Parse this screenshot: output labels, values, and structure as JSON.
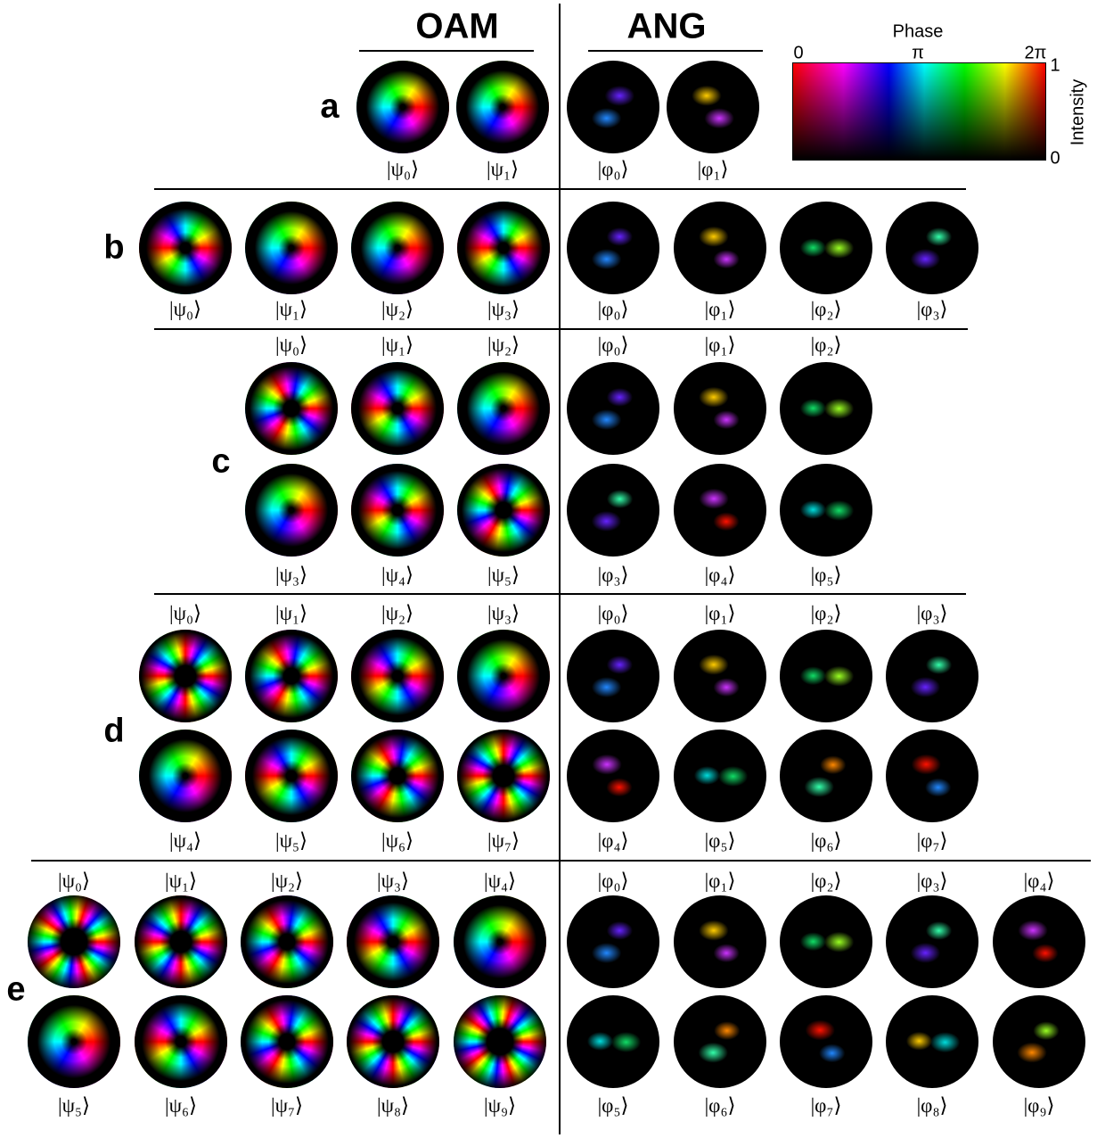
{
  "header": {
    "oam": "OAM",
    "ang": "ANG"
  },
  "colorbar": {
    "title": "Phase",
    "phase_ticks": [
      "0",
      "π",
      "2π"
    ],
    "intensity_ticks": [
      "1",
      "0"
    ],
    "intensity_label": "Intensity"
  },
  "panels": [
    {
      "label": "a",
      "oam": [
        [
          "|ψ₀⟩",
          "|ψ₁⟩"
        ]
      ],
      "ang": [
        [
          "|φ₀⟩",
          "|φ₁⟩"
        ]
      ]
    },
    {
      "label": "b",
      "oam": [
        [
          "|ψ₀⟩",
          "|ψ₁⟩",
          "|ψ₂⟩",
          "|ψ₃⟩"
        ]
      ],
      "ang": [
        [
          "|φ₀⟩",
          "|φ₁⟩",
          "|φ₂⟩",
          "|φ₃⟩"
        ]
      ]
    },
    {
      "label": "c",
      "oam": [
        [
          "|ψ₀⟩",
          "|ψ₁⟩",
          "|ψ₂⟩"
        ],
        [
          "|ψ₃⟩",
          "|ψ₄⟩",
          "|ψ₅⟩"
        ]
      ],
      "ang": [
        [
          "|φ₀⟩",
          "|φ₁⟩",
          "|φ₂⟩"
        ],
        [
          "|φ₃⟩",
          "|φ₄⟩",
          "|φ₅⟩"
        ]
      ]
    },
    {
      "label": "d",
      "oam": [
        [
          "|ψ₀⟩",
          "|ψ₁⟩",
          "|ψ₂⟩",
          "|ψ₃⟩"
        ],
        [
          "|ψ₄⟩",
          "|ψ₅⟩",
          "|ψ₆⟩",
          "|ψ₇⟩"
        ]
      ],
      "ang": [
        [
          "|φ₀⟩",
          "|φ₁⟩",
          "|φ₂⟩",
          "|φ₃⟩"
        ],
        [
          "|φ₄⟩",
          "|φ₅⟩",
          "|φ₆⟩",
          "|φ₇⟩"
        ]
      ]
    },
    {
      "label": "e",
      "oam": [
        [
          "|ψ₀⟩",
          "|ψ₁⟩",
          "|ψ₂⟩",
          "|ψ₃⟩",
          "|ψ₄⟩"
        ],
        [
          "|ψ₅⟩",
          "|ψ₆⟩",
          "|ψ₇⟩",
          "|ψ₈⟩",
          "|ψ₉⟩"
        ]
      ],
      "ang": [
        [
          "|φ₀⟩",
          "|φ₁⟩",
          "|φ₂⟩",
          "|φ₃⟩",
          "|φ₄⟩"
        ],
        [
          "|φ₅⟩",
          "|φ₆⟩",
          "|φ₇⟩",
          "|φ₈⟩",
          "|φ₉⟩"
        ]
      ]
    }
  ]
}
